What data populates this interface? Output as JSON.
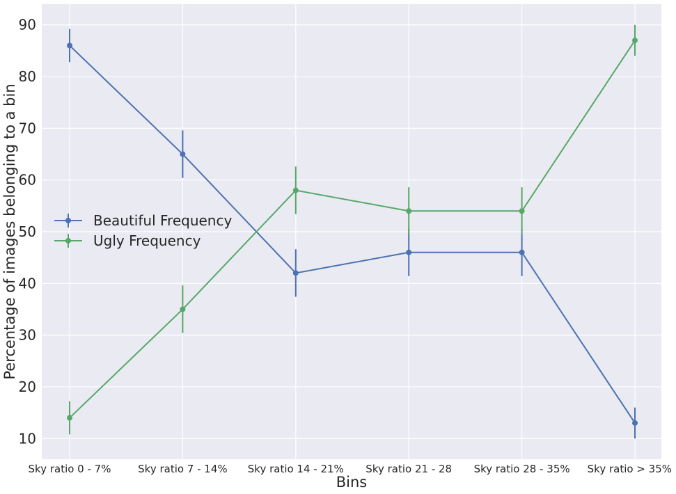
{
  "chart_data": {
    "type": "line",
    "xlabel": "Bins",
    "ylabel": "Percentage of images belonging to a bin",
    "categories": [
      "Sky ratio 0 - 7%",
      "Sky ratio 7 - 14%",
      "Sky ratio 14 - 21%",
      "Sky ratio 21 - 28",
      "Sky ratio 28 - 35%",
      "Sky ratio > 35%"
    ],
    "ylim": [
      6,
      94
    ],
    "yticks": [
      10,
      20,
      30,
      40,
      50,
      60,
      70,
      80,
      90
    ],
    "grid": true,
    "legend_position": "center-left",
    "series": [
      {
        "name": "Beautiful Frequency",
        "color": "#4c72b0",
        "values": [
          86,
          65,
          42,
          46,
          46,
          13
        ],
        "error": [
          3.2,
          4.6,
          4.6,
          4.6,
          4.6,
          3.0
        ]
      },
      {
        "name": "Ugly Frequency",
        "color": "#55a868",
        "values": [
          14,
          35,
          58,
          54,
          54,
          87
        ],
        "error": [
          3.2,
          4.6,
          4.6,
          4.6,
          4.6,
          3.0
        ]
      }
    ]
  }
}
